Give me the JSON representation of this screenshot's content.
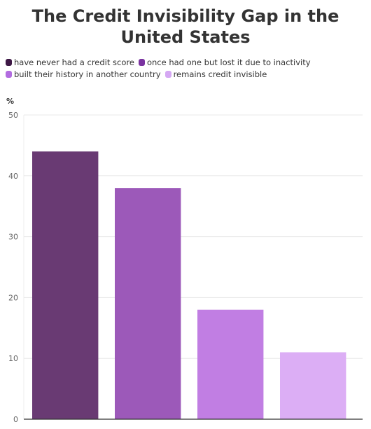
{
  "chart_data": {
    "type": "bar",
    "title": "The Credit Invisibility Gap in the United States",
    "y_unit": "%",
    "categories": [
      "have never had a credit score",
      "once had one but lost it due to inactivity",
      "built their history in another country",
      "remains credit invisible"
    ],
    "values": [
      44,
      38,
      18,
      11
    ],
    "colors": [
      "#693a73",
      "#9c59b9",
      "#c17ee3",
      "#dcaef5"
    ],
    "legend_swatch_colors": [
      "#3d1845",
      "#7a33a0",
      "#b26ce0",
      "#d5a8f3"
    ],
    "y_ticks": [
      0,
      10,
      20,
      30,
      40,
      50
    ],
    "ylim": [
      0,
      50
    ],
    "grid": true,
    "legend_position": "top-left",
    "xlabel": "",
    "ylabel": ""
  }
}
